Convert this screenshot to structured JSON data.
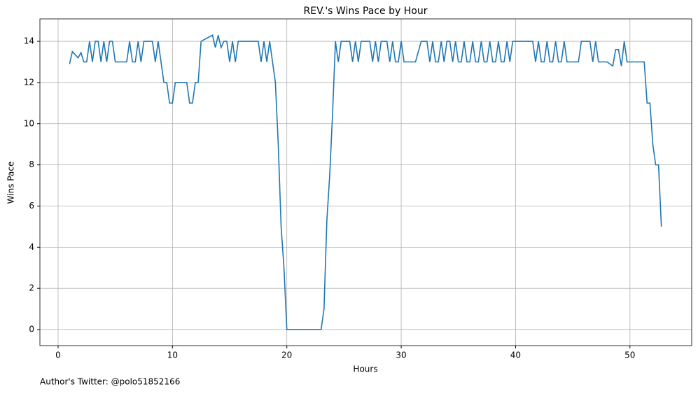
{
  "chart_data": {
    "type": "line",
    "title": "REV.'s Wins Pace by Hour",
    "x_label": "Hours",
    "y_label": "Wins Pace",
    "annotation": "Author's Twitter: @polo51852166",
    "x": [
      1,
      1.25,
      1.75,
      2,
      2.25,
      2.5,
      2.75,
      3,
      3.25,
      3.5,
      3.75,
      4,
      4.25,
      4.5,
      4.75,
      5,
      6,
      6.25,
      6.5,
      6.75,
      7,
      7.25,
      7.5,
      8.25,
      8.5,
      8.75,
      9,
      9.25,
      9.5,
      9.75,
      10,
      10.25,
      11.25,
      11.5,
      11.75,
      12,
      12.25,
      12.5,
      13.5,
      13.75,
      14,
      14.25,
      14.5,
      14.75,
      15,
      15.25,
      15.5,
      15.75,
      17.5,
      17.75,
      18,
      18.25,
      18.5,
      19,
      19.25,
      19.5,
      19.75,
      20,
      23,
      23.25,
      23.5,
      23.75,
      24,
      24.25,
      24.5,
      24.75,
      25.5,
      25.75,
      26,
      26.25,
      26.5,
      27.25,
      27.5,
      27.75,
      28,
      28.25,
      28.75,
      29,
      29.25,
      29.5,
      29.75,
      30,
      30.25,
      31.25,
      31.75,
      32.25,
      32.5,
      32.75,
      33,
      33.25,
      33.5,
      33.75,
      34,
      34.25,
      34.5,
      34.75,
      35,
      35.25,
      35.5,
      35.75,
      36,
      36.25,
      36.5,
      36.75,
      37,
      37.25,
      37.5,
      37.75,
      38,
      38.25,
      38.5,
      38.75,
      39,
      39.25,
      39.5,
      39.75,
      41.5,
      41.75,
      42,
      42.25,
      42.5,
      42.75,
      43,
      43.25,
      43.5,
      43.75,
      44,
      44.25,
      44.5,
      45.5,
      45.75,
      46.5,
      46.75,
      47,
      47.25,
      48,
      48.5,
      48.75,
      49,
      49.25,
      49.5,
      49.75,
      51.25,
      51.5,
      51.75,
      52,
      52.25,
      52.5,
      52.75
    ],
    "series": [
      {
        "name": "Wins Pace",
        "color": "#1f77b4",
        "values": [
          12.9,
          13.5,
          13.2,
          13.45,
          13,
          13,
          14,
          13,
          14,
          14,
          13,
          14,
          13,
          14,
          14,
          13,
          13,
          14,
          13,
          13,
          14,
          13,
          14,
          14,
          13,
          14,
          13,
          12,
          12,
          11,
          11,
          12,
          12,
          11,
          11,
          12,
          12,
          14,
          14.3,
          13.7,
          14.3,
          13.7,
          14,
          14,
          13,
          14,
          13,
          14,
          14,
          13,
          14,
          13,
          14,
          12,
          9,
          5,
          3,
          0,
          0,
          1,
          5.3,
          7.5,
          10.5,
          14,
          13,
          14,
          14,
          13,
          14,
          13,
          14,
          14,
          13,
          14,
          13,
          14,
          14,
          13,
          14,
          13,
          13,
          14,
          13,
          13,
          14,
          14,
          13,
          14,
          13,
          13,
          14,
          13,
          14,
          14,
          13,
          14,
          13,
          13,
          14,
          13,
          13,
          14,
          13,
          13,
          14,
          13,
          13,
          14,
          13,
          13,
          14,
          13,
          13,
          14,
          13,
          14,
          14,
          13,
          14,
          13,
          13,
          14,
          13,
          13,
          14,
          13,
          13,
          14,
          13,
          13,
          14,
          14,
          13,
          14,
          13,
          13,
          12.8,
          13.6,
          13.6,
          12.8,
          14,
          13,
          13,
          11,
          11,
          9,
          8,
          8,
          5
        ]
      }
    ],
    "xlim": [
      -1.59,
      55.4
    ],
    "ylim": [
      -0.78,
      15.09
    ],
    "xticks": [
      0,
      10,
      20,
      30,
      40,
      50
    ],
    "yticks": [
      0,
      2,
      4,
      6,
      8,
      10,
      12,
      14
    ],
    "grid": true
  }
}
